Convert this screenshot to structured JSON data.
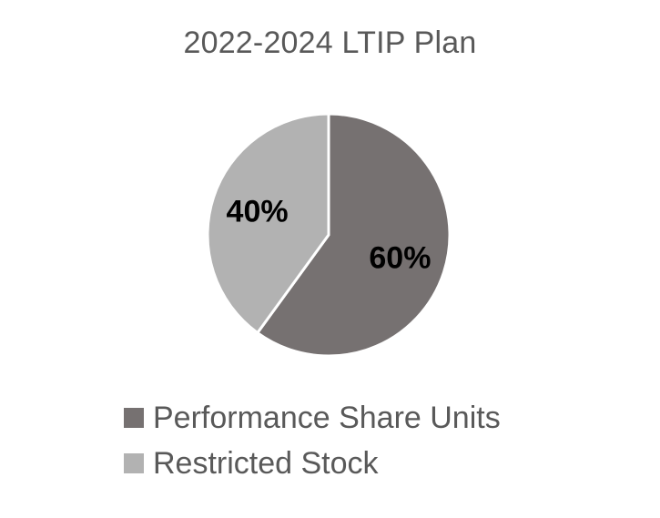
{
  "chart_data": {
    "type": "pie",
    "title": "2022-2024 LTIP Plan",
    "slices": [
      {
        "label": "Performance Share Units",
        "value": 60,
        "data_label": "60%",
        "color": "#767171"
      },
      {
        "label": "Restricted Stock",
        "value": 40,
        "data_label": "40%",
        "color": "#b2b2b2"
      }
    ],
    "legend_position": "bottom",
    "data_label_color": "#000000",
    "separator_color": "#ffffff"
  }
}
